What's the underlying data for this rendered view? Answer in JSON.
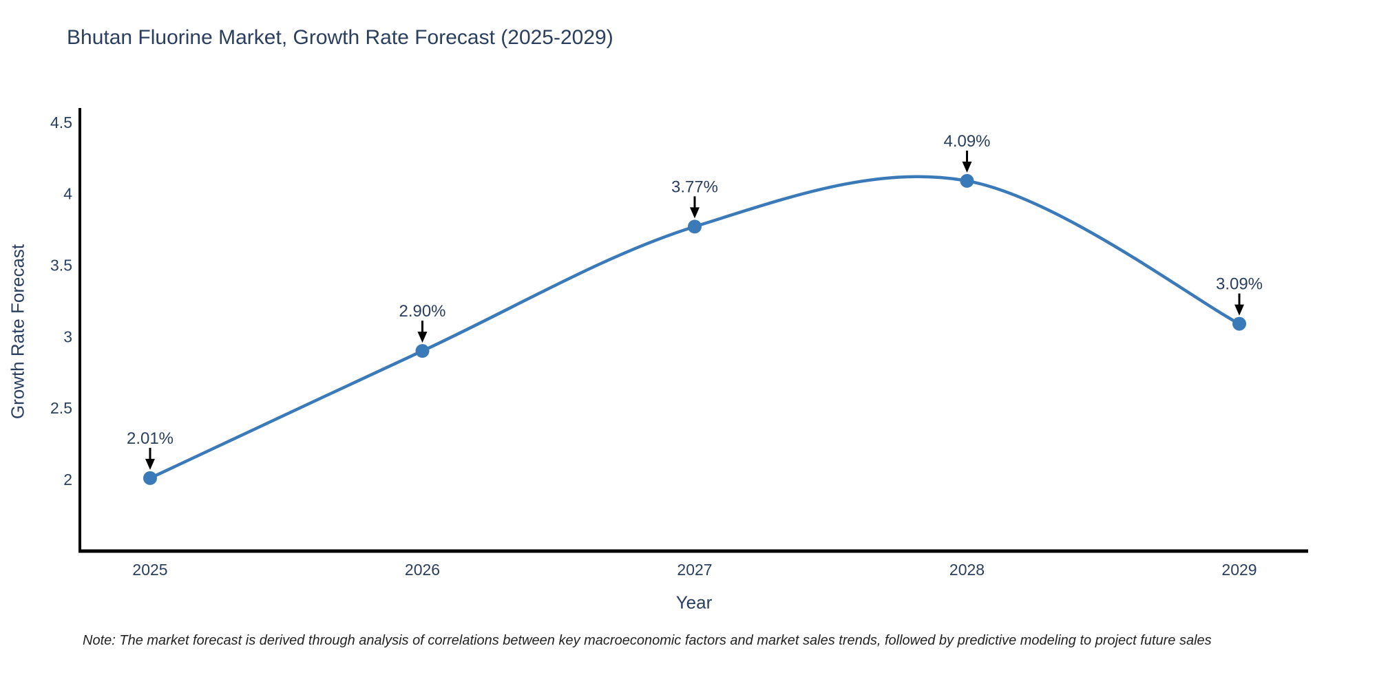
{
  "title": "Bhutan Fluorine Market, Growth Rate Forecast (2025-2029)",
  "note": "Note: The market forecast is derived through analysis of correlations between key macroeconomic factors and market sales trends, followed by predictive modeling to project future sales",
  "chart_data": {
    "type": "line",
    "title": "Bhutan Fluorine Market, Growth Rate Forecast (2025-2029)",
    "xlabel": "Year",
    "ylabel": "Growth Rate Forecast",
    "x": [
      2025,
      2026,
      2027,
      2028,
      2029
    ],
    "categories": [
      "2025",
      "2026",
      "2027",
      "2028",
      "2029"
    ],
    "values": [
      2.01,
      2.9,
      3.77,
      4.09,
      3.09
    ],
    "point_labels": [
      "2.01%",
      "2.90%",
      "3.77%",
      "4.09%",
      "3.09%"
    ],
    "yticks": [
      2,
      2.5,
      3,
      3.5,
      4,
      4.5
    ],
    "ytick_labels": [
      "2",
      "2.5",
      "3",
      "3.5",
      "4",
      "4.5"
    ],
    "ylim": [
      1.5,
      4.6
    ],
    "grid": false,
    "legend_position": "none",
    "line_shape": "spline",
    "colors": {
      "line": "#3a7ab8",
      "marker": "#3a7ab8",
      "label_text": "#2a3f5f",
      "annotation_text": "#2a3f5f",
      "arrow": "#000000",
      "axis_spine": "#000000",
      "note_text": "#222222",
      "background": "#ffffff"
    }
  }
}
